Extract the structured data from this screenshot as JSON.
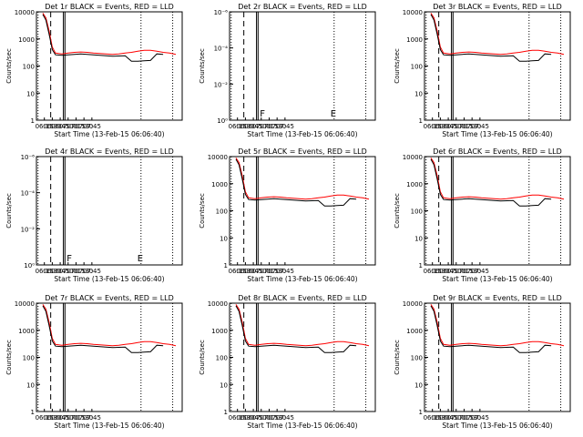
{
  "colors": {
    "events": "#000000",
    "lld": "#ff0000",
    "background": "#ffffff"
  },
  "xlabel": "Start Time (13-Feb-15 06:06:40)",
  "ylabel": "Counts/sec",
  "x_ticks": [
    "06:15",
    "06:30",
    "06:45",
    "07:00",
    "07:15",
    "07:30",
    "07:45"
  ],
  "log_ticks": [
    "1",
    "10",
    "100",
    "1000",
    "10000"
  ],
  "tiny_ticks": [
    "10⁰",
    "10⁻²",
    "10⁻⁴",
    "10⁻⁶"
  ],
  "chart_data": [
    {
      "type": "line",
      "title": "Det 1r BLACK = Events, RED = LLD",
      "mode": "log",
      "ylim": [
        1,
        10000
      ],
      "dets": {
        "black": 1,
        "red": 1
      }
    },
    {
      "type": "line",
      "title": "Det 2r BLACK = Events, RED = LLD",
      "mode": "empty",
      "ylim": [
        1,
        1e-06
      ],
      "marks": {
        "left": "F",
        "right": "E"
      }
    },
    {
      "type": "line",
      "title": "Det 3r BLACK = Events, RED = LLD",
      "mode": "log",
      "ylim": [
        1,
        10000
      ],
      "dets": {
        "black": 1,
        "red": 1
      }
    },
    {
      "type": "line",
      "title": "Det 4r BLACK = Events, RED = LLD",
      "mode": "empty",
      "ylim": [
        1,
        1e-06
      ],
      "marks": {
        "left": "F",
        "right": "E"
      }
    },
    {
      "type": "line",
      "title": "Det 5r BLACK = Events, RED = LLD",
      "mode": "log",
      "ylim": [
        1,
        10000
      ],
      "dets": {
        "black": 1,
        "red": 1
      }
    },
    {
      "type": "line",
      "title": "Det 6r BLACK = Events, RED = LLD",
      "mode": "log",
      "ylim": [
        1,
        10000
      ],
      "dets": {
        "black": 1,
        "red": 1
      }
    },
    {
      "type": "line",
      "title": "Det 7r BLACK = Events, RED = LLD",
      "mode": "log",
      "ylim": [
        1,
        10000
      ],
      "dets": {
        "black": 1,
        "red": 1
      }
    },
    {
      "type": "line",
      "title": "Det 8r BLACK = Events, RED = LLD",
      "mode": "log",
      "ylim": [
        1,
        10000
      ],
      "dets": {
        "black": 1,
        "red": 1
      }
    },
    {
      "type": "line",
      "title": "Det 9r BLACK = Events, RED = LLD",
      "mode": "log",
      "ylim": [
        1,
        10000
      ],
      "dets": {
        "black": 1,
        "red": 1
      }
    }
  ],
  "series_shape": {
    "red": [
      [
        6.2,
        9000
      ],
      [
        6.3,
        6000
      ],
      [
        6.4,
        2000
      ],
      [
        6.5,
        500
      ],
      [
        6.6,
        300
      ],
      [
        6.8,
        280
      ],
      [
        7.0,
        300
      ],
      [
        7.2,
        320
      ],
      [
        7.4,
        330
      ],
      [
        7.6,
        320
      ],
      [
        7.8,
        300
      ],
      [
        8.0,
        290
      ],
      [
        8.2,
        280
      ],
      [
        8.4,
        270
      ],
      [
        8.6,
        280
      ],
      [
        8.8,
        300
      ],
      [
        9.0,
        320
      ],
      [
        9.2,
        350
      ],
      [
        9.4,
        380
      ],
      [
        9.6,
        380
      ],
      [
        9.8,
        350
      ],
      [
        10.0,
        320
      ],
      [
        10.2,
        300
      ],
      [
        10.4,
        270
      ]
    ],
    "black": [
      [
        6.2,
        8000
      ],
      [
        6.3,
        5000
      ],
      [
        6.4,
        1500
      ],
      [
        6.5,
        400
      ],
      [
        6.6,
        260
      ],
      [
        6.8,
        250
      ],
      [
        7.0,
        260
      ],
      [
        7.2,
        270
      ],
      [
        7.4,
        280
      ],
      [
        7.6,
        270
      ],
      [
        7.8,
        260
      ],
      [
        8.0,
        250
      ],
      [
        8.2,
        240
      ],
      [
        8.4,
        230
      ],
      [
        8.6,
        235
      ],
      [
        8.8,
        240
      ],
      [
        9.0,
        150
      ],
      [
        9.2,
        150
      ],
      [
        9.4,
        155
      ],
      [
        9.6,
        160
      ],
      [
        9.8,
        280
      ],
      [
        10.0,
        270
      ]
    ]
  }
}
